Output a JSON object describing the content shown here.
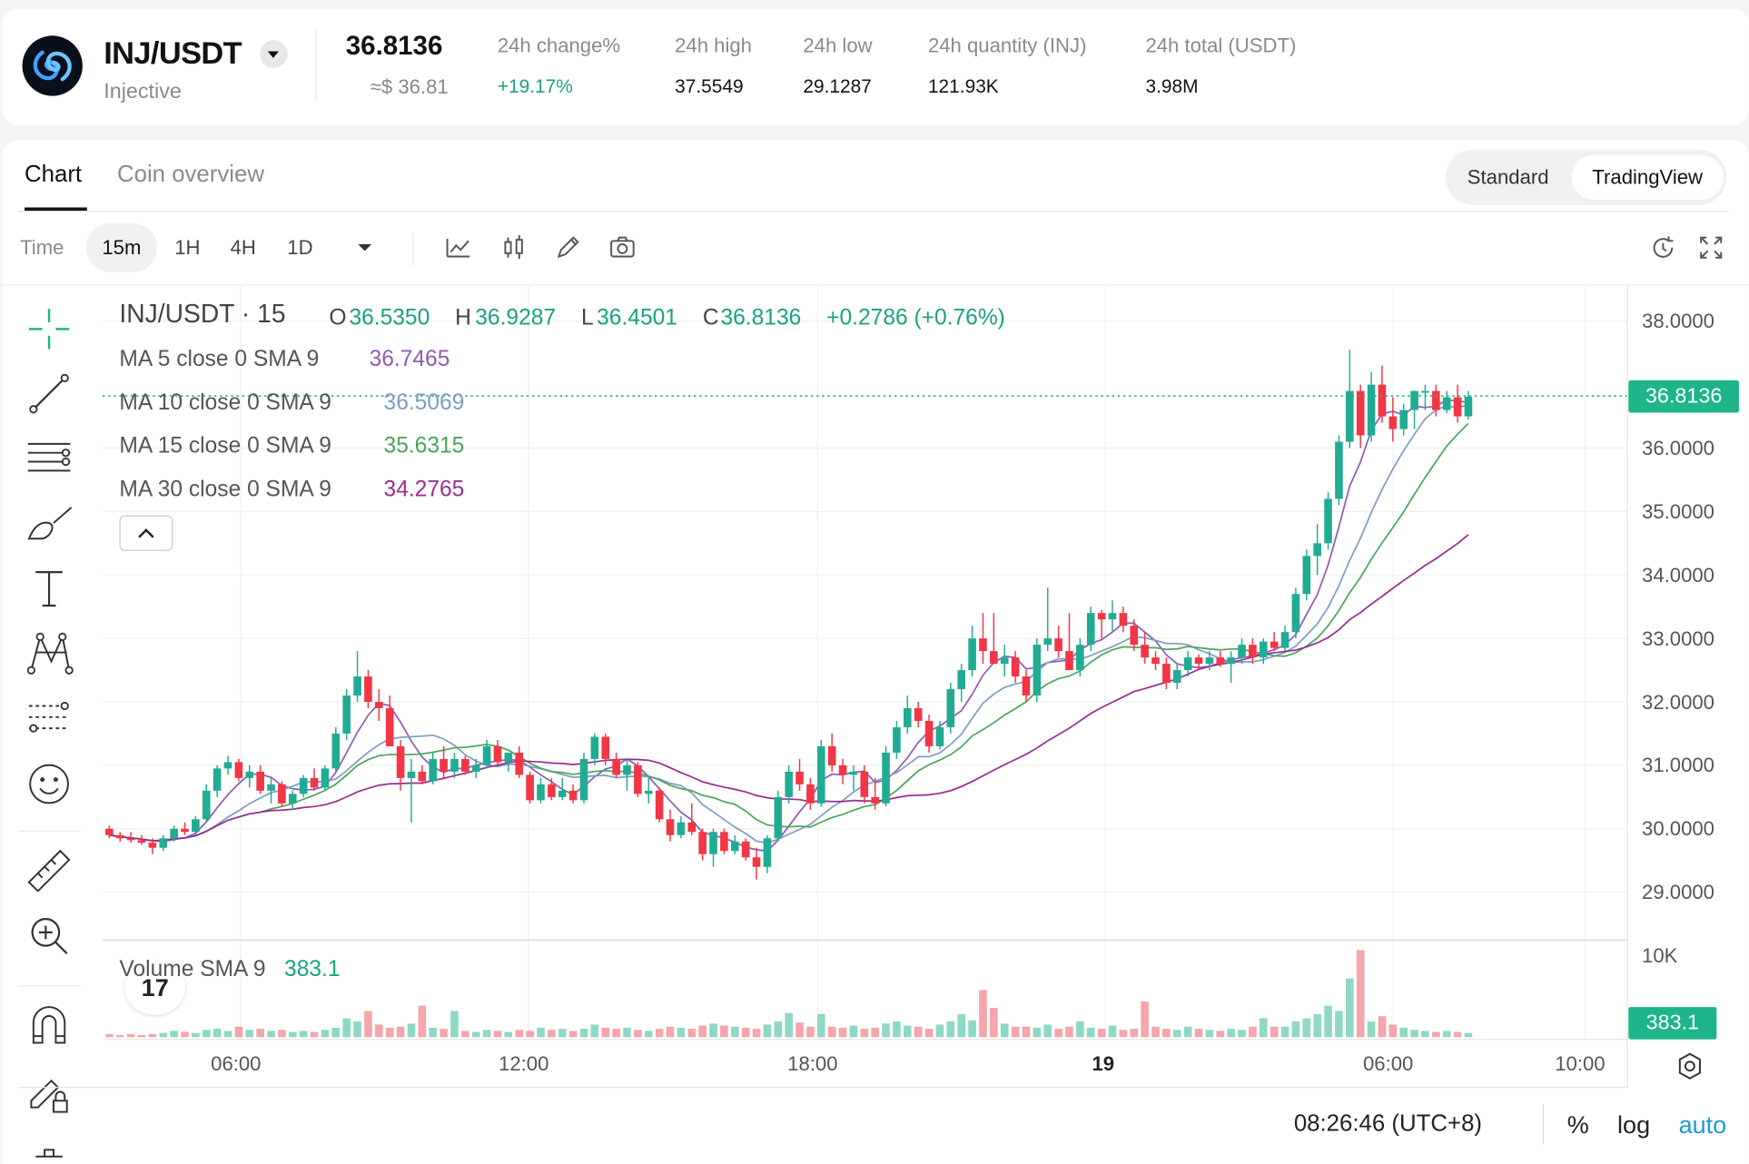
{
  "header": {
    "pair": "INJ/USDT",
    "coin_name": "Injective",
    "price": "36.8136",
    "price_usd": "≈$ 36.81",
    "stats": [
      {
        "label": "24h change%",
        "value": "+19.17%",
        "up": true
      },
      {
        "label": "24h high",
        "value": "37.5549"
      },
      {
        "label": "24h low",
        "value": "29.1287"
      },
      {
        "label": "24h quantity (INJ)",
        "value": "121.93K"
      },
      {
        "label": "24h total (USDT)",
        "value": "3.98M"
      }
    ]
  },
  "tabs": {
    "chart": "Chart",
    "overview": "Coin overview"
  },
  "view_toggle": {
    "standard": "Standard",
    "tradingview": "TradingView"
  },
  "toolbar": {
    "time_label": "Time",
    "intervals": [
      "15m",
      "1H",
      "4H",
      "1D"
    ],
    "active": "15m"
  },
  "legend": {
    "symbol": "INJ/USDT · 15",
    "o_label": "O",
    "o": "36.5350",
    "h_label": "H",
    "h": "36.9287",
    "l_label": "L",
    "l": "36.4501",
    "c_label": "C",
    "c": "36.8136",
    "change": "+0.2786 (+0.76%)",
    "ma": [
      {
        "label": "MA 5 close 0 SMA 9",
        "value": "36.7465",
        "color": "#8e5bb4"
      },
      {
        "label": "MA 10 close 0 SMA 9",
        "value": "36.5069",
        "color": "#7f9dc2"
      },
      {
        "label": "MA 15 close 0 SMA 9",
        "value": "35.6315",
        "color": "#4ca45c"
      },
      {
        "label": "MA 30 close 0 SMA 9",
        "value": "34.2765",
        "color": "#9b2c8e"
      }
    ],
    "volume_label": "Volume SMA 9",
    "volume_value": "383.1"
  },
  "axis": {
    "y_labels": [
      "38.0000",
      "36.0000",
      "35.0000",
      "34.0000",
      "33.0000",
      "32.0000",
      "31.0000",
      "30.0000",
      "29.0000"
    ],
    "current_price_tag": "36.8136",
    "volume_max_label": "10K",
    "volume_tag": "383.1",
    "x_labels": [
      "06:00",
      "12:00",
      "18:00",
      "19",
      "06:00",
      "10:00"
    ]
  },
  "colors": {
    "up": "#22ab94",
    "down": "#f23645",
    "up_vol": "#8fd8c6",
    "down_vol": "#f5a5ab",
    "accent": "#1db589"
  },
  "footer": {
    "time": "08:26:46 (UTC+8)",
    "percent": "%",
    "log": "log",
    "auto": "auto"
  },
  "chart_data": {
    "type": "candlestick",
    "title": "INJ/USDT · 15",
    "interval": "15m",
    "ylim": [
      28.5,
      38.3
    ],
    "y_ticks": [
      38,
      36,
      35,
      34,
      33,
      32,
      31,
      30,
      29
    ],
    "ohlc": [
      [
        30.0,
        30.05,
        29.85,
        29.9
      ],
      [
        29.9,
        29.95,
        29.8,
        29.85
      ],
      [
        29.85,
        29.95,
        29.78,
        29.82
      ],
      [
        29.82,
        29.9,
        29.75,
        29.78
      ],
      [
        29.78,
        29.85,
        29.6,
        29.7
      ],
      [
        29.7,
        29.9,
        29.65,
        29.85
      ],
      [
        29.85,
        30.05,
        29.8,
        30.0
      ],
      [
        30.0,
        30.1,
        29.9,
        29.95
      ],
      [
        29.95,
        30.2,
        29.9,
        30.15
      ],
      [
        30.15,
        30.7,
        30.1,
        30.6
      ],
      [
        30.6,
        31.0,
        30.5,
        30.95
      ],
      [
        30.95,
        31.15,
        30.85,
        31.05
      ],
      [
        31.05,
        31.1,
        30.75,
        30.8
      ],
      [
        30.8,
        31.0,
        30.65,
        30.9
      ],
      [
        30.9,
        31.0,
        30.55,
        30.6
      ],
      [
        30.6,
        30.8,
        30.4,
        30.7
      ],
      [
        30.7,
        30.75,
        30.35,
        30.4
      ],
      [
        30.4,
        30.6,
        30.3,
        30.55
      ],
      [
        30.55,
        30.85,
        30.5,
        30.8
      ],
      [
        30.8,
        30.95,
        30.6,
        30.65
      ],
      [
        30.65,
        31.0,
        30.6,
        30.95
      ],
      [
        30.95,
        31.6,
        30.9,
        31.5
      ],
      [
        31.5,
        32.2,
        31.4,
        32.1
      ],
      [
        32.1,
        32.8,
        32.0,
        32.4
      ],
      [
        32.4,
        32.5,
        31.9,
        32.0
      ],
      [
        32.0,
        32.2,
        31.7,
        31.9
      ],
      [
        31.9,
        32.1,
        31.3,
        31.3
      ],
      [
        31.3,
        31.4,
        30.6,
        30.8
      ],
      [
        30.8,
        31.1,
        30.1,
        30.9
      ],
      [
        30.9,
        31.0,
        30.7,
        30.75
      ],
      [
        30.75,
        31.2,
        30.7,
        31.1
      ],
      [
        31.1,
        31.3,
        30.8,
        30.9
      ],
      [
        30.9,
        31.2,
        30.8,
        31.1
      ],
      [
        31.1,
        31.15,
        30.85,
        30.9
      ],
      [
        30.9,
        31.1,
        30.8,
        31.0
      ],
      [
        31.0,
        31.4,
        30.95,
        31.3
      ],
      [
        31.3,
        31.4,
        31.0,
        31.05
      ],
      [
        31.05,
        31.2,
        30.9,
        31.2
      ],
      [
        31.2,
        31.3,
        30.8,
        30.85
      ],
      [
        30.85,
        30.9,
        30.4,
        30.45
      ],
      [
        30.45,
        30.8,
        30.4,
        30.7
      ],
      [
        30.7,
        30.8,
        30.45,
        30.5
      ],
      [
        30.5,
        30.8,
        30.45,
        30.6
      ],
      [
        30.6,
        30.7,
        30.4,
        30.45
      ],
      [
        30.45,
        31.2,
        30.4,
        31.1
      ],
      [
        31.1,
        31.5,
        31.0,
        31.45
      ],
      [
        31.45,
        31.5,
        31.0,
        31.1
      ],
      [
        31.1,
        31.2,
        30.8,
        30.85
      ],
      [
        30.85,
        31.1,
        30.6,
        31.0
      ],
      [
        31.0,
        31.05,
        30.5,
        30.55
      ],
      [
        30.55,
        30.8,
        30.4,
        30.6
      ],
      [
        30.6,
        30.65,
        30.1,
        30.15
      ],
      [
        30.15,
        30.3,
        29.8,
        29.9
      ],
      [
        29.9,
        30.2,
        29.85,
        30.1
      ],
      [
        30.1,
        30.4,
        29.9,
        29.95
      ],
      [
        29.95,
        30.0,
        29.5,
        29.6
      ],
      [
        29.6,
        30.0,
        29.4,
        29.95
      ],
      [
        29.95,
        30.0,
        29.6,
        29.65
      ],
      [
        29.65,
        29.9,
        29.6,
        29.8
      ],
      [
        29.8,
        29.85,
        29.5,
        29.55
      ],
      [
        29.55,
        29.7,
        29.2,
        29.4
      ],
      [
        29.4,
        29.9,
        29.3,
        29.85
      ],
      [
        29.85,
        30.6,
        29.8,
        30.5
      ],
      [
        30.5,
        31.0,
        30.4,
        30.9
      ],
      [
        30.9,
        31.1,
        30.6,
        30.7
      ],
      [
        30.7,
        30.8,
        30.3,
        30.4
      ],
      [
        30.4,
        31.4,
        30.35,
        31.3
      ],
      [
        31.3,
        31.5,
        30.9,
        31.0
      ],
      [
        31.0,
        31.1,
        30.7,
        30.85
      ],
      [
        30.85,
        31.0,
        30.6,
        30.9
      ],
      [
        30.9,
        31.0,
        30.4,
        30.5
      ],
      [
        30.5,
        30.8,
        30.3,
        30.4
      ],
      [
        30.4,
        31.3,
        30.35,
        31.2
      ],
      [
        31.2,
        31.7,
        31.1,
        31.6
      ],
      [
        31.6,
        32.1,
        31.5,
        31.9
      ],
      [
        31.9,
        32.0,
        31.6,
        31.7
      ],
      [
        31.7,
        31.8,
        31.2,
        31.3
      ],
      [
        31.3,
        31.7,
        31.25,
        31.6
      ],
      [
        31.6,
        32.3,
        31.5,
        32.2
      ],
      [
        32.2,
        32.6,
        32.0,
        32.5
      ],
      [
        32.5,
        33.2,
        32.4,
        33.0
      ],
      [
        33.0,
        33.4,
        32.6,
        32.8
      ],
      [
        32.8,
        33.4,
        32.6,
        32.6
      ],
      [
        32.6,
        32.9,
        32.4,
        32.7
      ],
      [
        32.7,
        32.8,
        32.3,
        32.4
      ],
      [
        32.4,
        32.5,
        32.0,
        32.1
      ],
      [
        32.1,
        33.0,
        32.0,
        32.9
      ],
      [
        32.9,
        33.8,
        32.8,
        33.0
      ],
      [
        33.0,
        33.2,
        32.7,
        32.8
      ],
      [
        32.8,
        33.4,
        32.5,
        32.5
      ],
      [
        32.5,
        33.0,
        32.4,
        32.9
      ],
      [
        32.9,
        33.5,
        32.8,
        33.4
      ],
      [
        33.4,
        33.45,
        33.0,
        33.3
      ],
      [
        33.3,
        33.6,
        33.1,
        33.4
      ],
      [
        33.4,
        33.5,
        33.1,
        33.2
      ],
      [
        33.2,
        33.3,
        32.8,
        32.9
      ],
      [
        32.9,
        33.1,
        32.6,
        32.7
      ],
      [
        32.7,
        32.8,
        32.5,
        32.6
      ],
      [
        32.6,
        32.7,
        32.2,
        32.3
      ],
      [
        32.3,
        32.6,
        32.2,
        32.5
      ],
      [
        32.5,
        32.8,
        32.4,
        32.7
      ],
      [
        32.7,
        32.75,
        32.5,
        32.6
      ],
      [
        32.6,
        32.8,
        32.5,
        32.7
      ],
      [
        32.7,
        32.8,
        32.55,
        32.6
      ],
      [
        32.6,
        32.8,
        32.3,
        32.7
      ],
      [
        32.7,
        33.0,
        32.6,
        32.9
      ],
      [
        32.9,
        33.0,
        32.6,
        32.7
      ],
      [
        32.7,
        33.0,
        32.6,
        32.95
      ],
      [
        32.95,
        33.1,
        32.8,
        32.85
      ],
      [
        32.85,
        33.2,
        32.8,
        33.1
      ],
      [
        33.1,
        33.8,
        33.0,
        33.7
      ],
      [
        33.7,
        34.4,
        33.6,
        34.3
      ],
      [
        34.3,
        34.8,
        34.0,
        34.5
      ],
      [
        34.5,
        35.3,
        34.4,
        35.2
      ],
      [
        35.2,
        36.2,
        35.1,
        36.1
      ],
      [
        36.1,
        37.55,
        36.0,
        36.9
      ],
      [
        36.9,
        37.0,
        36.0,
        36.2
      ],
      [
        36.2,
        37.2,
        36.1,
        37.0
      ],
      [
        37.0,
        37.3,
        36.4,
        36.5
      ],
      [
        36.5,
        36.8,
        36.1,
        36.3
      ],
      [
        36.3,
        36.7,
        36.2,
        36.6
      ],
      [
        36.6,
        36.9,
        36.3,
        36.9
      ],
      [
        36.9,
        37.0,
        36.6,
        36.9
      ],
      [
        36.9,
        37.0,
        36.5,
        36.6
      ],
      [
        36.6,
        36.9,
        36.55,
        36.8
      ],
      [
        36.8,
        37.0,
        36.4,
        36.5
      ],
      [
        36.5,
        36.9,
        36.45,
        36.81
      ]
    ],
    "volume": [
      0.3,
      0.2,
      0.3,
      0.2,
      0.3,
      0.4,
      0.6,
      0.5,
      0.4,
      0.7,
      0.8,
      0.6,
      1.0,
      0.7,
      0.8,
      0.6,
      0.7,
      0.5,
      0.6,
      0.5,
      0.7,
      0.9,
      1.8,
      1.5,
      2.5,
      1.2,
      0.9,
      1.0,
      1.3,
      3.0,
      0.9,
      0.8,
      2.5,
      0.6,
      0.5,
      0.7,
      0.6,
      0.5,
      0.7,
      0.6,
      0.9,
      0.7,
      0.8,
      0.6,
      0.8,
      1.2,
      0.9,
      0.8,
      0.9,
      0.7,
      0.6,
      0.8,
      1.0,
      0.9,
      0.8,
      1.1,
      1.3,
      1.1,
      1.0,
      0.9,
      0.8,
      1.2,
      1.5,
      2.3,
      1.4,
      1.0,
      2.2,
      1.0,
      0.9,
      1.1,
      0.8,
      0.9,
      1.3,
      1.5,
      1.1,
      1.0,
      0.8,
      1.2,
      1.5,
      2.2,
      1.6,
      4.5,
      2.8,
      1.3,
      1.0,
      1.0,
      0.9,
      1.2,
      0.8,
      1.0,
      1.5,
      0.9,
      0.8,
      1.1,
      0.7,
      0.8,
      3.4,
      1.0,
      0.8,
      0.7,
      1.0,
      0.8,
      0.7,
      0.6,
      0.8,
      0.7,
      1.0,
      1.8,
      1.0,
      1.0,
      1.5,
      1.8,
      2.2,
      3.0,
      2.5,
      5.6,
      8.3,
      1.5,
      2.0,
      1.2,
      0.9,
      0.7,
      0.6,
      0.5,
      0.6,
      0.5,
      0.4,
      0.3
    ],
    "moving_averages": [
      {
        "name": "MA 5 close 0 SMA 9",
        "period": 5,
        "last": "36.7465"
      },
      {
        "name": "MA 10 close 0 SMA 9",
        "period": 10,
        "last": "36.5069"
      },
      {
        "name": "MA 15 close 0 SMA 9",
        "period": 15,
        "last": "35.6315"
      },
      {
        "name": "MA 30 close 0 SMA 9",
        "period": 30,
        "last": "34.2765"
      }
    ],
    "current_price": 36.8136,
    "x_ticks": [
      "06:00",
      "12:00",
      "18:00",
      "19",
      "06:00",
      "10:00"
    ]
  }
}
